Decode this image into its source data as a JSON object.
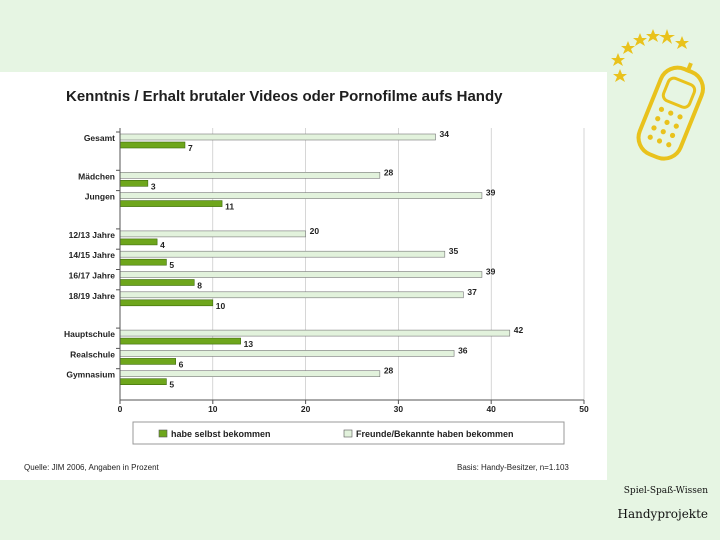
{
  "chart_data": {
    "type": "bar",
    "orientation": "horizontal",
    "title": "Kenntnis / Erhalt brutaler Videos oder Pornofilme aufs Handy",
    "categories": [
      "Gesamt",
      "Mädchen",
      "Jungen",
      "12/13 Jahre",
      "14/15 Jahre",
      "16/17 Jahre",
      "18/19 Jahre",
      "Hauptschule",
      "Realschule",
      "Gymnasium"
    ],
    "groups": [
      1,
      2,
      2,
      3,
      3,
      3,
      3,
      4,
      4,
      4
    ],
    "series": [
      {
        "name": "Freunde/Bekannte haben bekommen",
        "color": "#e2f2dc",
        "values": [
          34,
          28,
          39,
          20,
          35,
          39,
          37,
          42,
          36,
          28
        ]
      },
      {
        "name": "habe selbst bekommen",
        "color": "#6ea61c",
        "values": [
          7,
          3,
          11,
          4,
          5,
          8,
          10,
          13,
          6,
          5
        ]
      }
    ],
    "xlim": [
      0,
      50
    ],
    "xticks": [
      0,
      10,
      20,
      30,
      40,
      50
    ],
    "grid": true,
    "legend_position": "bottom"
  },
  "legend": [
    {
      "label": "habe selbst bekommen",
      "color": "#6ea61c"
    },
    {
      "label": "Freunde/Bekannte haben bekommen",
      "color": "#e2f2dc"
    }
  ],
  "source": {
    "left": "Quelle: JIM 2006, Angaben in Prozent",
    "right": "Basis: Handy-Besitzer, n=1.103"
  },
  "footer": {
    "top": "Spiel-Spaß-Wissen",
    "bottom": "Handyprojekte"
  },
  "colors": {
    "background_band": "#e6f5e3",
    "logo_yellow": "#e9c21c",
    "gridline": "#bbbbbb"
  },
  "logo": {
    "icon": "stars-and-phone-logo"
  }
}
